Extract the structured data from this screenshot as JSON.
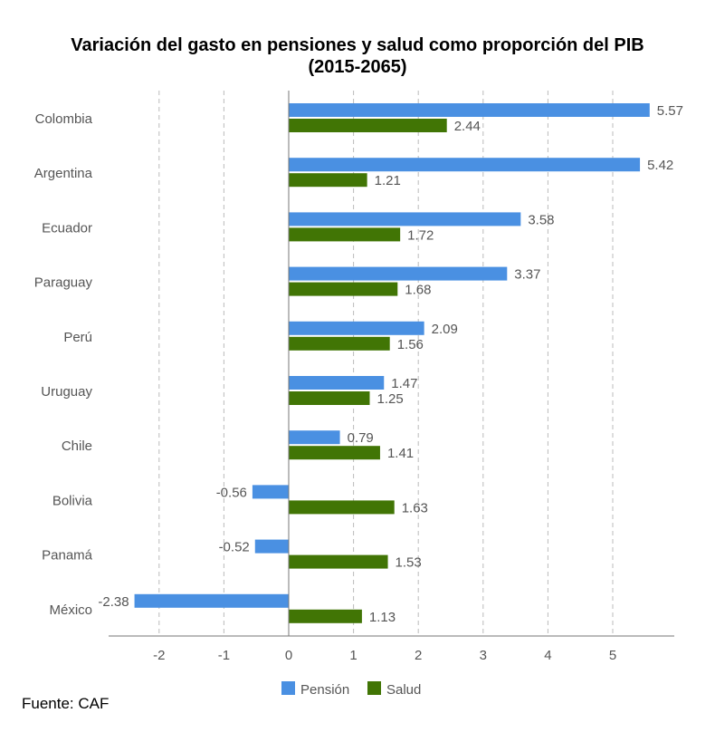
{
  "chart_data": {
    "type": "bar",
    "orientation": "horizontal",
    "title": "Variación del gasto en pensiones y salud como proporción del PIB",
    "subtitle": "(2015-2065)",
    "categories": [
      "Colombia",
      "Argentina",
      "Ecuador",
      "Paraguay",
      "Perú",
      "Uruguay",
      "Chile",
      "Bolivia",
      "Panamá",
      "México"
    ],
    "series": [
      {
        "name": "Pensión",
        "color": "#4a90e2",
        "values": [
          5.57,
          5.42,
          3.58,
          3.37,
          2.09,
          1.47,
          0.79,
          -0.56,
          -0.52,
          -2.38
        ]
      },
      {
        "name": "Salud",
        "color": "#417505",
        "values": [
          2.44,
          1.21,
          1.72,
          1.68,
          1.56,
          1.25,
          1.41,
          1.63,
          1.53,
          1.13
        ]
      }
    ],
    "xlim": [
      -2.8,
      5.95
    ],
    "xticks": [
      -2,
      -1,
      0,
      1,
      2,
      3,
      4,
      5
    ],
    "grid": "vertical dashed",
    "legend": "bottom"
  },
  "source": "Fuente: CAF"
}
